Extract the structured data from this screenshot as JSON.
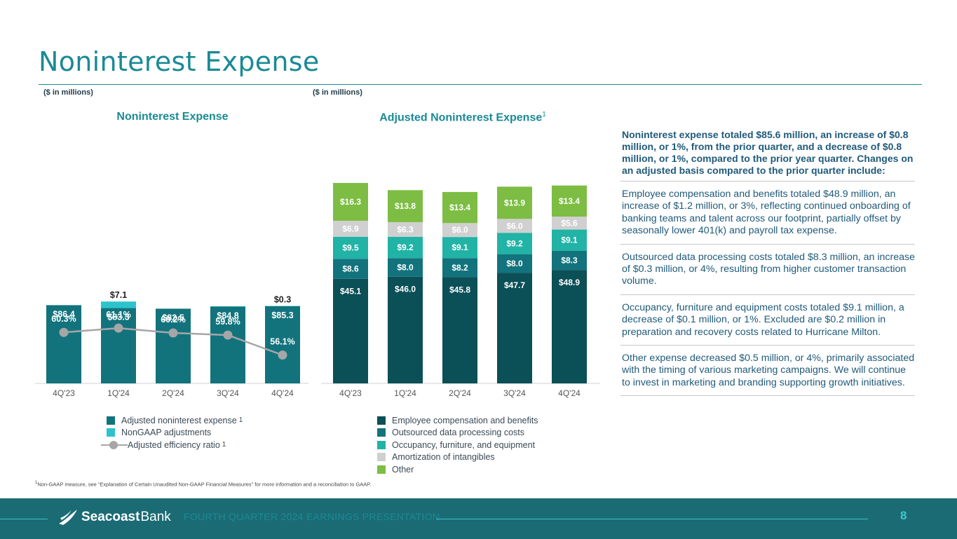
{
  "page": {
    "title": "Noninterest Expense",
    "footnote_marker": "1",
    "footnote": "Non-GAAP measure, see “Explanation of Certain Unaudited Non-GAAP Financial Measures” for more information and a reconciliation to GAAP.",
    "footer": {
      "brand_primary": "Seacoast",
      "brand_secondary": "Bank",
      "presentation": "FOURTH QUARTER 2024 EARNINGS PRESENTATION",
      "page_number": "8"
    }
  },
  "colors": {
    "title": "#1a8a95",
    "adjusted_noninterest": "#12737d",
    "nongaap_adjustments": "#2cc4cc",
    "efficiency_line": "#a6a6a6",
    "employee_comp": "#0b4f57",
    "outsourced": "#12737d",
    "occupancy": "#21b3a5",
    "amortization": "#d0d0d0",
    "other": "#7dbd43"
  },
  "chart_data": [
    {
      "type": "bar",
      "subtitle": "($ in millions)",
      "title": "Noninterest Expense",
      "categories": [
        "4Q'23",
        "1Q'24",
        "2Q'24",
        "3Q'24",
        "4Q'24"
      ],
      "series": [
        {
          "name": "Adjusted noninterest expense",
          "name_sup": "1",
          "values": [
            86.4,
            83.3,
            82.5,
            84.8,
            85.3
          ],
          "labels": [
            "$86.4",
            "$83.3",
            "$82.5",
            "$84.8",
            "$85.3"
          ]
        },
        {
          "name": "NonGAAP adjustments",
          "values": [
            0,
            7.1,
            0,
            0.4,
            0.3
          ],
          "labels": [
            "",
            "$7.1",
            "",
            "",
            "$0.3"
          ]
        }
      ],
      "line": {
        "name": "Adjusted efficiency ratio",
        "name_sup": "1",
        "values": [
          60.3,
          61.1,
          60.2,
          59.8,
          56.1
        ],
        "labels": [
          "60.3%",
          "61.1%",
          "60.2%",
          "59.8%",
          "56.1%"
        ]
      },
      "ylim": [
        0,
        110
      ]
    },
    {
      "type": "bar",
      "stacked": true,
      "subtitle": "($ in millions)",
      "title": "Adjusted Noninterest Expense",
      "title_sup": "1",
      "categories": [
        "4Q'23",
        "1Q'24",
        "2Q'24",
        "3Q'24",
        "4Q'24"
      ],
      "series": [
        {
          "name": "Employee compensation and benefits",
          "values": [
            45.1,
            46.0,
            45.8,
            47.7,
            48.9
          ],
          "labels": [
            "$45.1",
            "$46.0",
            "$45.8",
            "$47.7",
            "$48.9"
          ]
        },
        {
          "name": "Outsourced data processing costs",
          "values": [
            8.6,
            8.0,
            8.2,
            8.0,
            8.3
          ],
          "labels": [
            "$8.6",
            "$8.0",
            "$8.2",
            "$8.0",
            "$8.3"
          ]
        },
        {
          "name": "Occupancy, furniture, and equipment",
          "values": [
            9.5,
            9.2,
            9.1,
            9.2,
            9.1
          ],
          "labels": [
            "$9.5",
            "$9.2",
            "$9.1",
            "$9.2",
            "$9.1"
          ]
        },
        {
          "name": "Amortization of intangibles",
          "values": [
            6.9,
            6.3,
            6.0,
            6.0,
            5.6
          ],
          "labels": [
            "$6.9",
            "$6.3",
            "$6.0",
            "$6.0",
            "$5.6"
          ]
        },
        {
          "name": "Other",
          "values": [
            16.3,
            13.8,
            13.4,
            13.9,
            13.4
          ],
          "labels": [
            "$16.3",
            "$13.8",
            "$13.4",
            "$13.9",
            "$13.4"
          ]
        }
      ],
      "ylim": [
        0,
        110
      ]
    }
  ],
  "commentary": {
    "lead": "Noninterest expense totaled $85.6 million, an increase of $0.8 million, or 1%, from the prior quarter, and a decrease of $0.8 million, or 1%, compared to the prior year quarter. Changes on an adjusted basis compared to the prior quarter include:",
    "points": [
      "Employee compensation and benefits totaled $48.9 million, an increase of $1.2 million, or 3%, reflecting continued onboarding of banking teams and talent across our footprint, partially offset by seasonally lower 401(k) and payroll tax expense.",
      "Outsourced data processing costs totaled $8.3 million, an increase of $0.3 million, or 4%, resulting from higher customer transaction volume.",
      "Occupancy, furniture and equipment costs totaled $9.1 million, a decrease of $0.1 million, or 1%. Excluded are $0.2 million in preparation and recovery costs related to Hurricane Milton.",
      "Other expense decreased $0.5 million, or 4%, primarily associated with the timing of various marketing campaigns. We will continue to invest in marketing and branding supporting growth initiatives."
    ]
  }
}
